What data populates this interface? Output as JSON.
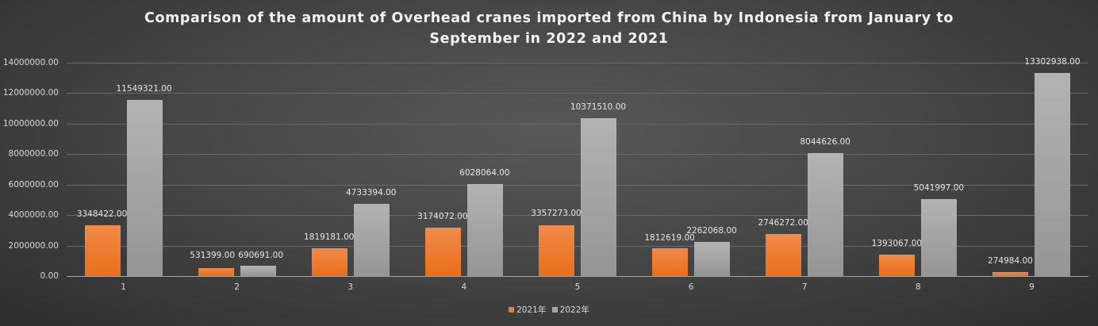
{
  "chart_data": {
    "type": "bar",
    "title": "Comparison of the amount of Overhead cranes imported from China by Indonesia from January to September in 2022 and 2021",
    "title_lines": [
      "Comparison of the amount of Overhead cranes imported from China by Indonesia from January to",
      "September in 2022 and 2021"
    ],
    "xlabel": "",
    "ylabel": "",
    "categories": [
      "1",
      "2",
      "3",
      "4",
      "5",
      "6",
      "7",
      "8",
      "9"
    ],
    "series": [
      {
        "name": "2021年",
        "color": "#ED7D31",
        "values": [
          3348422.0,
          531399.0,
          1819181.0,
          3174072.0,
          3357273.0,
          1812619.0,
          2746272.0,
          1393067.0,
          274984.0
        ],
        "labels": [
          "3348422.00",
          "531399.00",
          "1819181.00",
          "3174072.00",
          "3357273.00",
          "1812619.00",
          "2746272.00",
          "1393067.00",
          "274984.00"
        ]
      },
      {
        "name": "2022年",
        "color": "#A5A5A5",
        "values": [
          11549321.0,
          690691.0,
          4733394.0,
          6028064.0,
          10371510.0,
          2262068.0,
          8044626.0,
          5041997.0,
          13302938.0
        ],
        "labels": [
          "11549321.00",
          "690691.00",
          "4733394.00",
          "6028064.00",
          "10371510.00",
          "2262068.00",
          "8044626.00",
          "5041997.00",
          "13302938.00"
        ]
      }
    ],
    "ylim": [
      0,
      14000000
    ],
    "yticks": [
      "0.00",
      "2000000.00",
      "4000000.00",
      "6000000.00",
      "8000000.00",
      "10000000.00",
      "12000000.00",
      "14000000.00"
    ],
    "grid": true,
    "legend_position": "bottom",
    "data_labels": true
  }
}
